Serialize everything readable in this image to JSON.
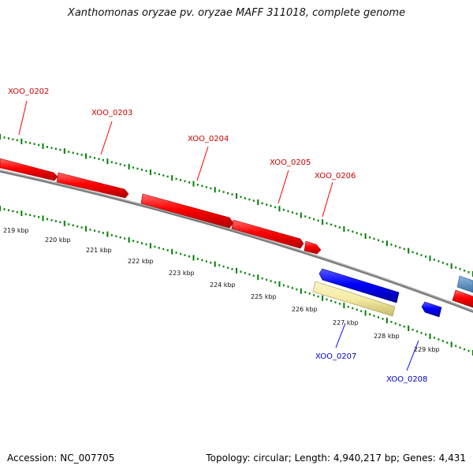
{
  "title": "Xanthomonas oryzae pv. oryzae MAFF 311018, complete genome",
  "footer": {
    "accession": "Accession: NC_007705",
    "summary": "Topology: circular; Length: 4,940,217 bp; Genes: 4,431"
  },
  "colors": {
    "forward_gene": "#ff0000",
    "reverse_gene": "#0000ff",
    "pseudo_gene": "#f5eba5",
    "other_feature": "#4682b4",
    "backbone": "#808080",
    "ruler": "#008000",
    "label_forward": "#cc0000",
    "label_reverse": "#0000cc"
  },
  "gene_labels": [
    {
      "name": "XOO_0202",
      "strand": "forward"
    },
    {
      "name": "XOO_0203",
      "strand": "forward"
    },
    {
      "name": "XOO_0204",
      "strand": "forward"
    },
    {
      "name": "XOO_0205",
      "strand": "forward"
    },
    {
      "name": "XOO_0206",
      "strand": "forward"
    },
    {
      "name": "XOO_0207",
      "strand": "reverse"
    },
    {
      "name": "XOO_0208",
      "strand": "reverse"
    }
  ],
  "scale_ticks": [
    "219 kbp",
    "220 kbp",
    "221 kbp",
    "222 kbp",
    "223 kbp",
    "224 kbp",
    "225 kbp",
    "226 kbp",
    "227 kbp",
    "228 kbp",
    "229 kbp"
  ]
}
